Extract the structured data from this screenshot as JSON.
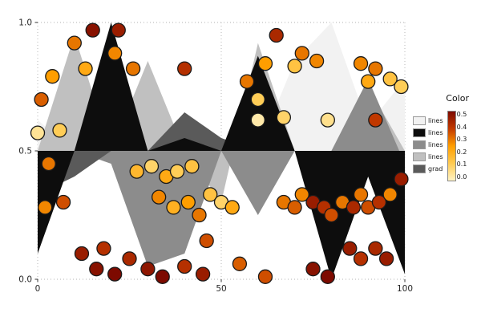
{
  "chart_data": {
    "type": "area",
    "subtype": [
      "area-bands-around-baseline",
      "scatter-colormapped"
    ],
    "title": "",
    "xlabel": "",
    "ylabel": "",
    "xlim": [
      0,
      100
    ],
    "ylim": [
      0.0,
      1.0
    ],
    "grid": "dotted, on major ticks only",
    "x_ticks": [
      0,
      50,
      100
    ],
    "x_tick_labels": [
      "0",
      "50",
      "100"
    ],
    "y_ticks": [
      0.0,
      0.5,
      1.0
    ],
    "y_tick_labels": [
      "0.0",
      "0.5",
      "1.0"
    ],
    "baseline": 0.5,
    "area_x": [
      0,
      10,
      20,
      30,
      40,
      50,
      60,
      70,
      80,
      90,
      100
    ],
    "area_series": [
      {
        "name": "lines",
        "color": "#f2f2f2",
        "y": [
          0.62,
          0.5,
          0.5,
          0.5,
          0.5,
          0.5,
          0.5,
          0.85,
          1.0,
          0.6,
          0.78
        ]
      },
      {
        "name": "lines",
        "color": "#c0c0c0",
        "y": [
          0.5,
          0.95,
          0.5,
          0.85,
          0.5,
          0.3,
          0.92,
          0.5,
          0.3,
          0.75,
          0.5
        ]
      },
      {
        "name": "lines",
        "color": "#8c8c8c",
        "y": [
          0.5,
          0.5,
          0.45,
          0.05,
          0.1,
          0.5,
          0.25,
          0.5,
          0.5,
          0.78,
          0.45
        ]
      },
      {
        "name": "grad",
        "color": "#5a5a5a",
        "y": [
          0.33,
          0.4,
          0.5,
          0.5,
          0.65,
          0.55,
          0.5,
          0.5,
          0.5,
          0.45,
          0.5
        ]
      },
      {
        "name": "lines",
        "color": "#0d0d0d",
        "y": [
          0.1,
          0.5,
          1.0,
          0.5,
          0.55,
          0.5,
          0.87,
          0.5,
          0.0,
          0.4,
          0.02
        ]
      }
    ],
    "scatter": {
      "edge_color": "#1a1a1a",
      "radius_px": 8.5,
      "value_key": "color value c in [0, 0.5]",
      "points": [
        [
          0,
          0.57,
          0.05
        ],
        [
          6,
          0.58,
          0.12
        ],
        [
          1,
          0.7,
          0.33
        ],
        [
          4,
          0.79,
          0.25
        ],
        [
          10,
          0.92,
          0.3
        ],
        [
          15,
          0.97,
          0.48
        ],
        [
          22,
          0.97,
          0.45
        ],
        [
          13,
          0.82,
          0.22
        ],
        [
          21,
          0.88,
          0.28
        ],
        [
          26,
          0.82,
          0.3
        ],
        [
          40,
          0.82,
          0.4
        ],
        [
          65,
          0.95,
          0.42
        ],
        [
          72,
          0.88,
          0.3
        ],
        [
          76,
          0.85,
          0.28
        ],
        [
          70,
          0.83,
          0.15
        ],
        [
          62,
          0.84,
          0.25
        ],
        [
          57,
          0.77,
          0.3
        ],
        [
          60,
          0.7,
          0.12
        ],
        [
          60,
          0.62,
          0.03
        ],
        [
          67,
          0.63,
          0.1
        ],
        [
          79,
          0.62,
          0.06
        ],
        [
          88,
          0.84,
          0.28
        ],
        [
          92,
          0.82,
          0.3
        ],
        [
          96,
          0.78,
          0.15
        ],
        [
          90,
          0.77,
          0.22
        ],
        [
          99,
          0.75,
          0.12
        ],
        [
          92,
          0.62,
          0.38
        ],
        [
          99,
          0.39,
          0.45
        ],
        [
          3,
          0.45,
          0.3
        ],
        [
          7,
          0.3,
          0.35
        ],
        [
          2,
          0.28,
          0.28
        ],
        [
          12,
          0.1,
          0.45
        ],
        [
          16,
          0.04,
          0.48
        ],
        [
          21,
          0.02,
          0.5
        ],
        [
          18,
          0.12,
          0.4
        ],
        [
          25,
          0.08,
          0.42
        ],
        [
          30,
          0.04,
          0.47
        ],
        [
          34,
          0.01,
          0.5
        ],
        [
          40,
          0.05,
          0.4
        ],
        [
          45,
          0.02,
          0.45
        ],
        [
          27,
          0.42,
          0.18
        ],
        [
          31,
          0.44,
          0.1
        ],
        [
          35,
          0.4,
          0.22
        ],
        [
          38,
          0.42,
          0.12
        ],
        [
          42,
          0.44,
          0.15
        ],
        [
          33,
          0.32,
          0.28
        ],
        [
          37,
          0.28,
          0.2
        ],
        [
          41,
          0.3,
          0.25
        ],
        [
          44,
          0.25,
          0.3
        ],
        [
          47,
          0.33,
          0.15
        ],
        [
          50,
          0.3,
          0.1
        ],
        [
          53,
          0.28,
          0.22
        ],
        [
          46,
          0.15,
          0.35
        ],
        [
          55,
          0.06,
          0.33
        ],
        [
          62,
          0.01,
          0.35
        ],
        [
          67,
          0.3,
          0.3
        ],
        [
          70,
          0.28,
          0.33
        ],
        [
          72,
          0.33,
          0.28
        ],
        [
          75,
          0.3,
          0.45
        ],
        [
          78,
          0.28,
          0.4
        ],
        [
          80,
          0.25,
          0.35
        ],
        [
          83,
          0.3,
          0.3
        ],
        [
          86,
          0.28,
          0.42
        ],
        [
          88,
          0.33,
          0.3
        ],
        [
          90,
          0.28,
          0.35
        ],
        [
          93,
          0.3,
          0.4
        ],
        [
          96,
          0.33,
          0.28
        ],
        [
          85,
          0.12,
          0.45
        ],
        [
          88,
          0.08,
          0.4
        ],
        [
          92,
          0.12,
          0.42
        ],
        [
          95,
          0.08,
          0.45
        ],
        [
          75,
          0.04,
          0.48
        ],
        [
          79,
          0.01,
          0.5
        ]
      ]
    },
    "colormap": {
      "range": [
        0.0,
        0.5
      ],
      "stops": [
        {
          "t": 0.0,
          "color": "#FFF3C4"
        },
        {
          "t": 0.25,
          "color": "#FFCB52"
        },
        {
          "t": 0.5,
          "color": "#FF9E00"
        },
        {
          "t": 0.75,
          "color": "#C33A00"
        },
        {
          "t": 1.0,
          "color": "#7D0A00"
        }
      ]
    },
    "legend": {
      "title": "Color",
      "position": "right, outside plot",
      "colorbar_tick_labels": [
        "0.5",
        "0.4",
        "0.3",
        "0.2",
        "0.1",
        "0.0"
      ],
      "entries": [
        {
          "label": "lines",
          "color": "#f2f2f2"
        },
        {
          "label": "lines",
          "color": "#0d0d0d"
        },
        {
          "label": "lines",
          "color": "#8c8c8c"
        },
        {
          "label": "lines",
          "color": "#c0c0c0"
        },
        {
          "label": "grad",
          "color": "#5a5a5a"
        }
      ]
    },
    "style": {
      "grid_color": "#b0b0b0",
      "tick_label_color": "#262626",
      "background": "#ffffff"
    }
  }
}
